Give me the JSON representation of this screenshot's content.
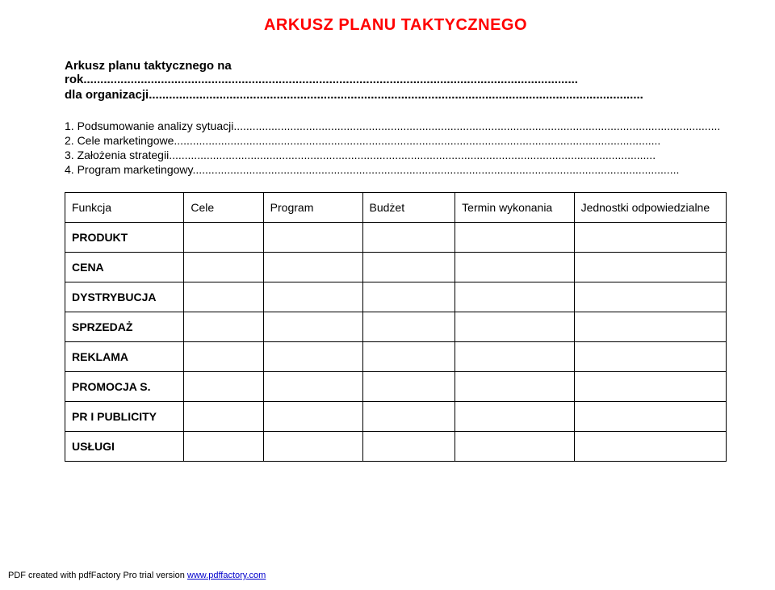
{
  "title": "ARKUSZ PLANU TAKTYCZNEGO",
  "subtitle_prefix": "Arkusz planu taktycznego na rok",
  "org_prefix": "dla organizacji",
  "items": {
    "i1": "1. Podsumowanie analizy sytuacji",
    "i2": "2. Cele marketingowe",
    "i3": "3. Założenia strategii",
    "i4": "4. Program marketingowy"
  },
  "headers": {
    "funkcja": "Funkcja",
    "cele": "Cele",
    "program": "Program",
    "budzet": "Budżet",
    "termin": "Termin wykonania",
    "jednostki": "Jednostki odpowiedzialne"
  },
  "rows": {
    "r1": "PRODUKT",
    "r2": "CENA",
    "r3": "DYSTRYBUCJA",
    "r4": "SPRZEDAŻ",
    "r5": "REKLAMA",
    "r6": "PROMOCJA S.",
    "r7": "PR I PUBLICITY",
    "r8": "USŁUGI"
  },
  "footer": {
    "text": "PDF created with pdfFactory Pro trial version ",
    "link": "www.pdffactory.com"
  },
  "dots_long": "...................................................................................................................................................",
  "dots_med": "..........................................................................................................................................................."
}
